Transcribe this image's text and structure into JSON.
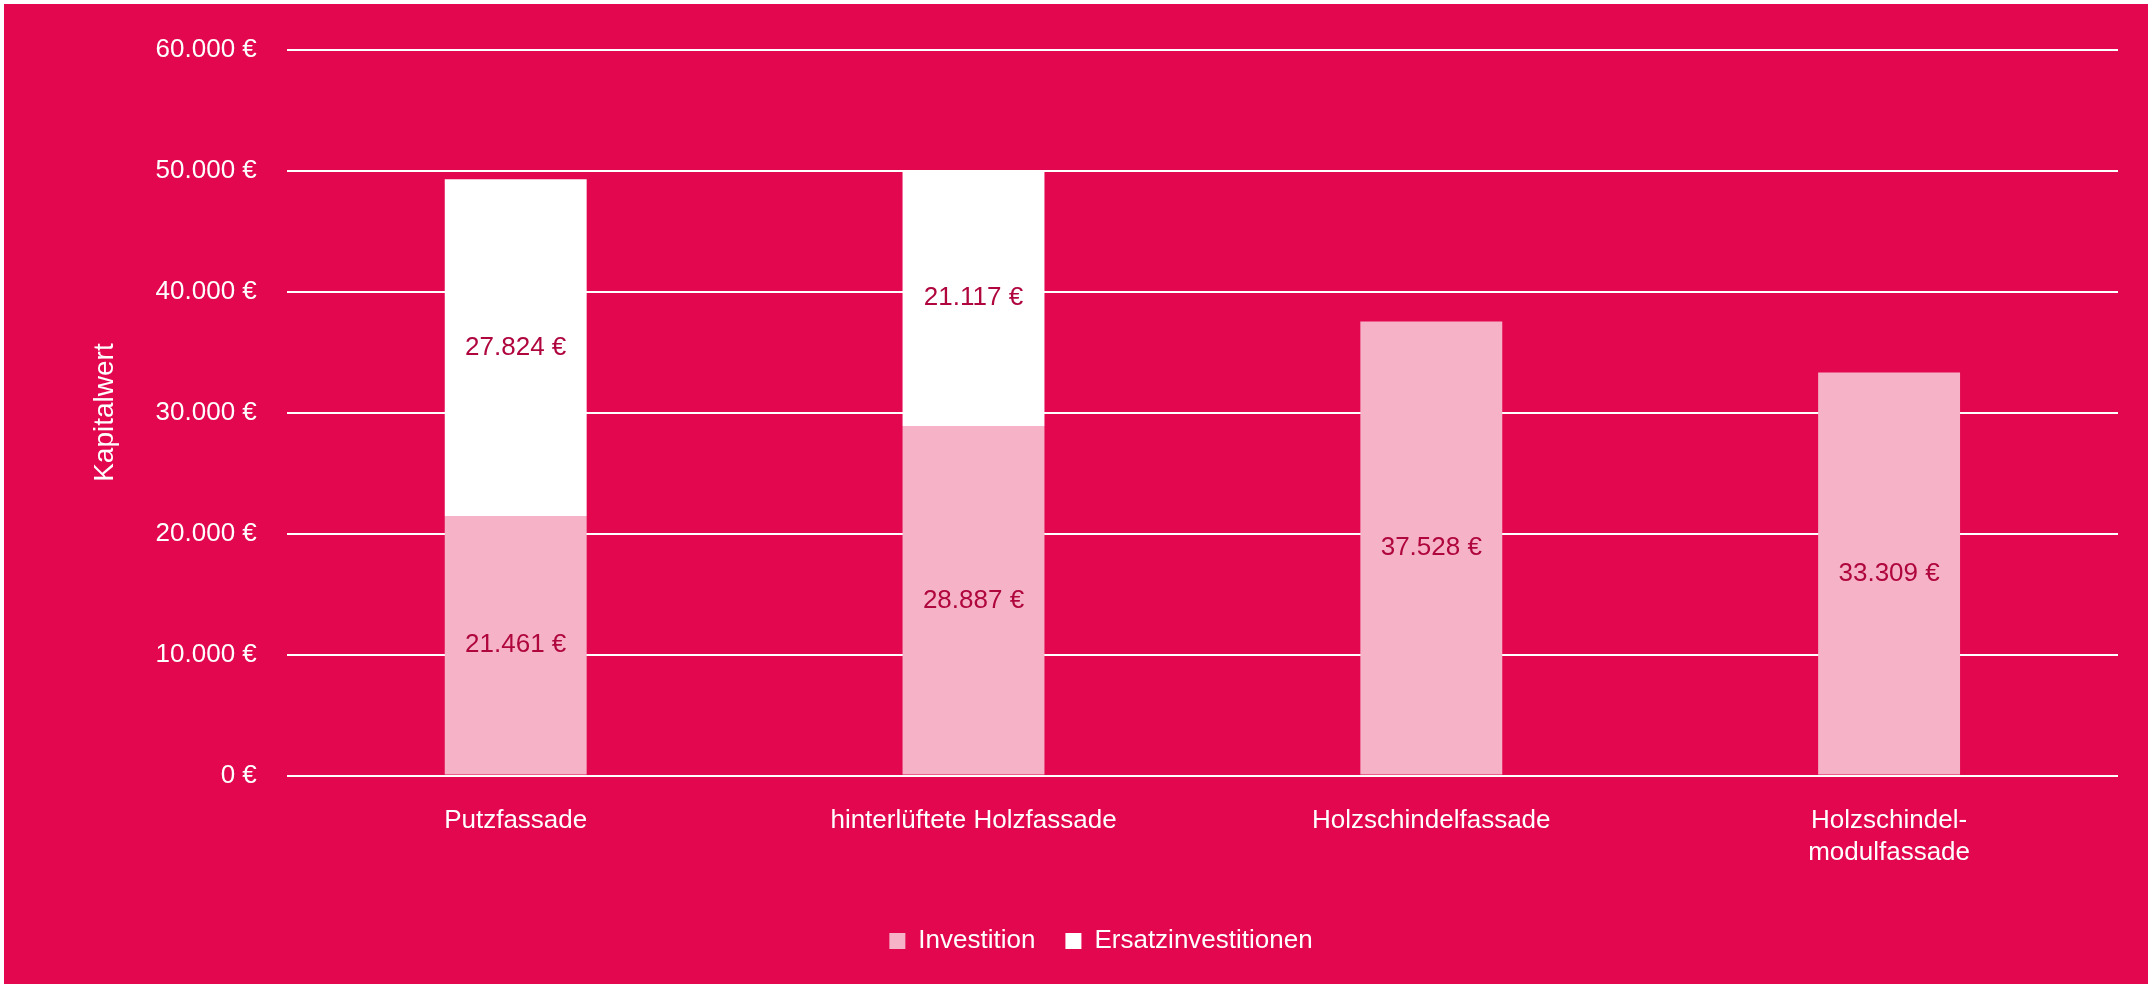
{
  "chart_data": {
    "type": "bar",
    "stacked": true,
    "ylabel": "Kapitalwert",
    "categories": [
      "Putzfassade",
      "hinterlüftete Holzfassade",
      "Holzschindelfassade",
      "Holzschindel-modulfassade"
    ],
    "series": [
      {
        "name": "Investition",
        "color": "#f6b3c8",
        "values": [
          21461,
          28887,
          37528,
          33309
        ],
        "value_labels": [
          "21.461 €",
          "28.887 €",
          "37.528 €",
          "33.309 €"
        ]
      },
      {
        "name": "Ersatzinvestitionen",
        "color": "#ffffff",
        "values": [
          27824,
          21117,
          null,
          null
        ],
        "value_labels": [
          "27.824 €",
          "21.117 €",
          null,
          null
        ]
      }
    ],
    "ylim": [
      0,
      60000
    ],
    "yticks": [
      {
        "value": 0,
        "label": "0 €"
      },
      {
        "value": 10000,
        "label": "10.000 €"
      },
      {
        "value": 20000,
        "label": "20.000 €"
      },
      {
        "value": 30000,
        "label": "30.000 €"
      },
      {
        "value": 40000,
        "label": "40.000 €"
      },
      {
        "value": 50000,
        "label": "50.000 €"
      },
      {
        "value": 60000,
        "label": "60.000 €"
      }
    ],
    "grid": "y",
    "legend": "bottom"
  }
}
